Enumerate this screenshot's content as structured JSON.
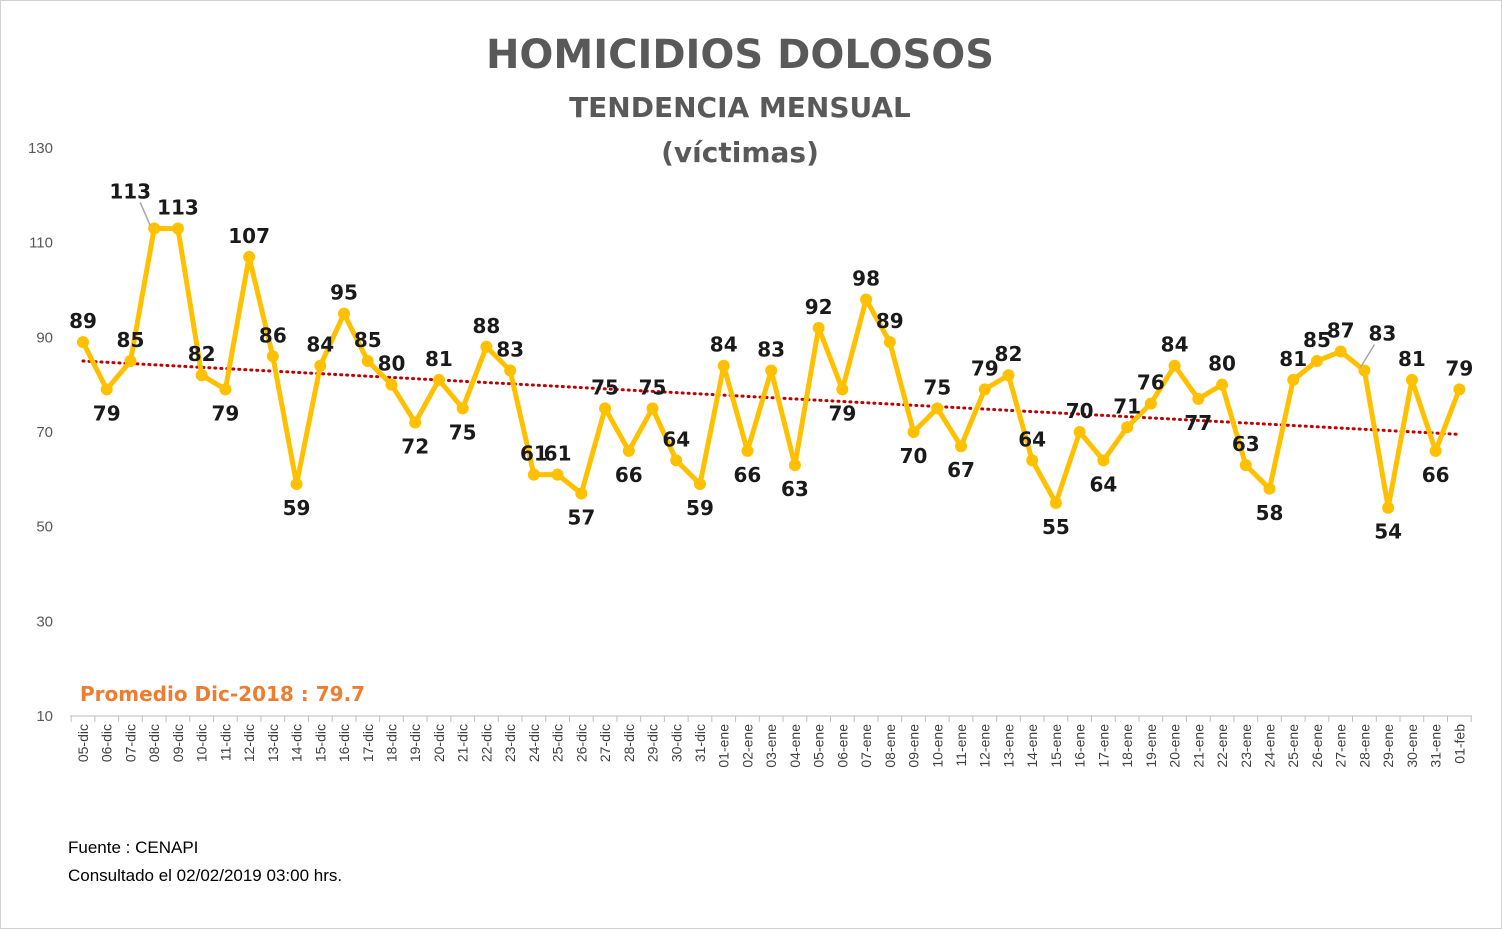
{
  "chart_data": {
    "type": "line",
    "title": "HOMICIDIOS DOLOSOS",
    "subtitle": "TENDENCIA MENSUAL",
    "subtitle2": "(víctimas)",
    "ylim": [
      10,
      130
    ],
    "yticks": [
      10,
      30,
      50,
      70,
      90,
      110,
      130
    ],
    "categories": [
      "05-dic",
      "06-dic",
      "07-dic",
      "08-dic",
      "09-dic",
      "10-dic",
      "11-dic",
      "12-dic",
      "13-dic",
      "14-dic",
      "15-dic",
      "16-dic",
      "17-dic",
      "18-dic",
      "19-dic",
      "20-dic",
      "21-dic",
      "22-dic",
      "23-dic",
      "24-dic",
      "25-dic",
      "26-dic",
      "27-dic",
      "28-dic",
      "29-dic",
      "30-dic",
      "31-dic",
      "01-ene",
      "02-ene",
      "03-ene",
      "04-ene",
      "05-ene",
      "06-ene",
      "07-ene",
      "08-ene",
      "09-ene",
      "10-ene",
      "11-ene",
      "12-ene",
      "13-ene",
      "14-ene",
      "15-ene",
      "16-ene",
      "17-ene",
      "18-ene",
      "19-ene",
      "20-ene",
      "21-ene",
      "22-ene",
      "23-ene",
      "24-ene",
      "25-ene",
      "26-ene",
      "27-ene",
      "28-ene",
      "29-ene",
      "30-ene",
      "31-ene",
      "01-feb"
    ],
    "series": [
      {
        "values": [
          89,
          79,
          85,
          113,
          113,
          82,
          79,
          107,
          86,
          59,
          84,
          95,
          85,
          80,
          72,
          81,
          75,
          88,
          83,
          61,
          61,
          57,
          75,
          66,
          75,
          64,
          59,
          84,
          66,
          83,
          63,
          92,
          79,
          98,
          89,
          70,
          75,
          67,
          79,
          82,
          64,
          55,
          70,
          64,
          71,
          76,
          84,
          77,
          80,
          63,
          58,
          81,
          85,
          87,
          83,
          54,
          81,
          66,
          79
        ]
      }
    ],
    "trendline": {
      "type": "linear",
      "start": 85,
      "end": 69.5
    },
    "annotation": "Promedio Dic-2018 : 79.7",
    "grid": false,
    "colors": {
      "line": "#ffc000",
      "trend": "#c00000",
      "annotation": "#ed7d31"
    }
  },
  "footer": {
    "source": "Fuente : CENAPI",
    "consulted": "Consultado el 02/02/2019  03:00 hrs."
  }
}
